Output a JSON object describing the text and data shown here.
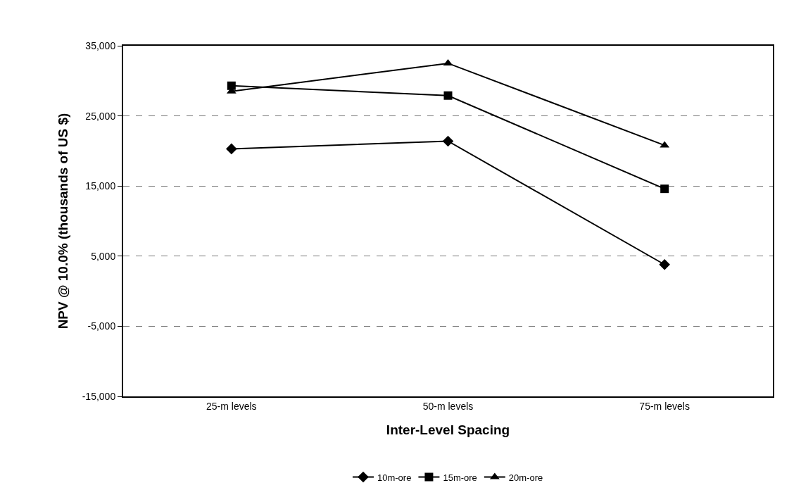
{
  "chart_data": {
    "type": "line",
    "xlabel": "Inter-Level Spacing",
    "ylabel": "NPV @ 10.0% (thousands of US $)",
    "categories": [
      "25-m levels",
      "50-m levels",
      "75-m levels"
    ],
    "series": [
      {
        "name": "10m-ore",
        "color": "#000000",
        "marker": "diamond",
        "values": [
          20300,
          21400,
          3800
        ]
      },
      {
        "name": "15m-ore",
        "color": "#000000",
        "marker": "square",
        "values": [
          29300,
          27900,
          14600
        ]
      },
      {
        "name": "20m-ore",
        "color": "#000000",
        "marker": "triangle",
        "values": [
          28500,
          32500,
          20800
        ]
      }
    ],
    "ylim": [
      -15000,
      35000
    ],
    "yticks": [
      {
        "value": -15000,
        "label": "-15,000"
      },
      {
        "value": -5000,
        "label": "-5,000"
      },
      {
        "value": 5000,
        "label": "5,000"
      },
      {
        "value": 15000,
        "label": "15,000"
      },
      {
        "value": 25000,
        "label": "25,000"
      },
      {
        "value": 35000,
        "label": "35,000"
      }
    ],
    "grid": "y",
    "legend": "bottom",
    "line_style": "solid"
  }
}
